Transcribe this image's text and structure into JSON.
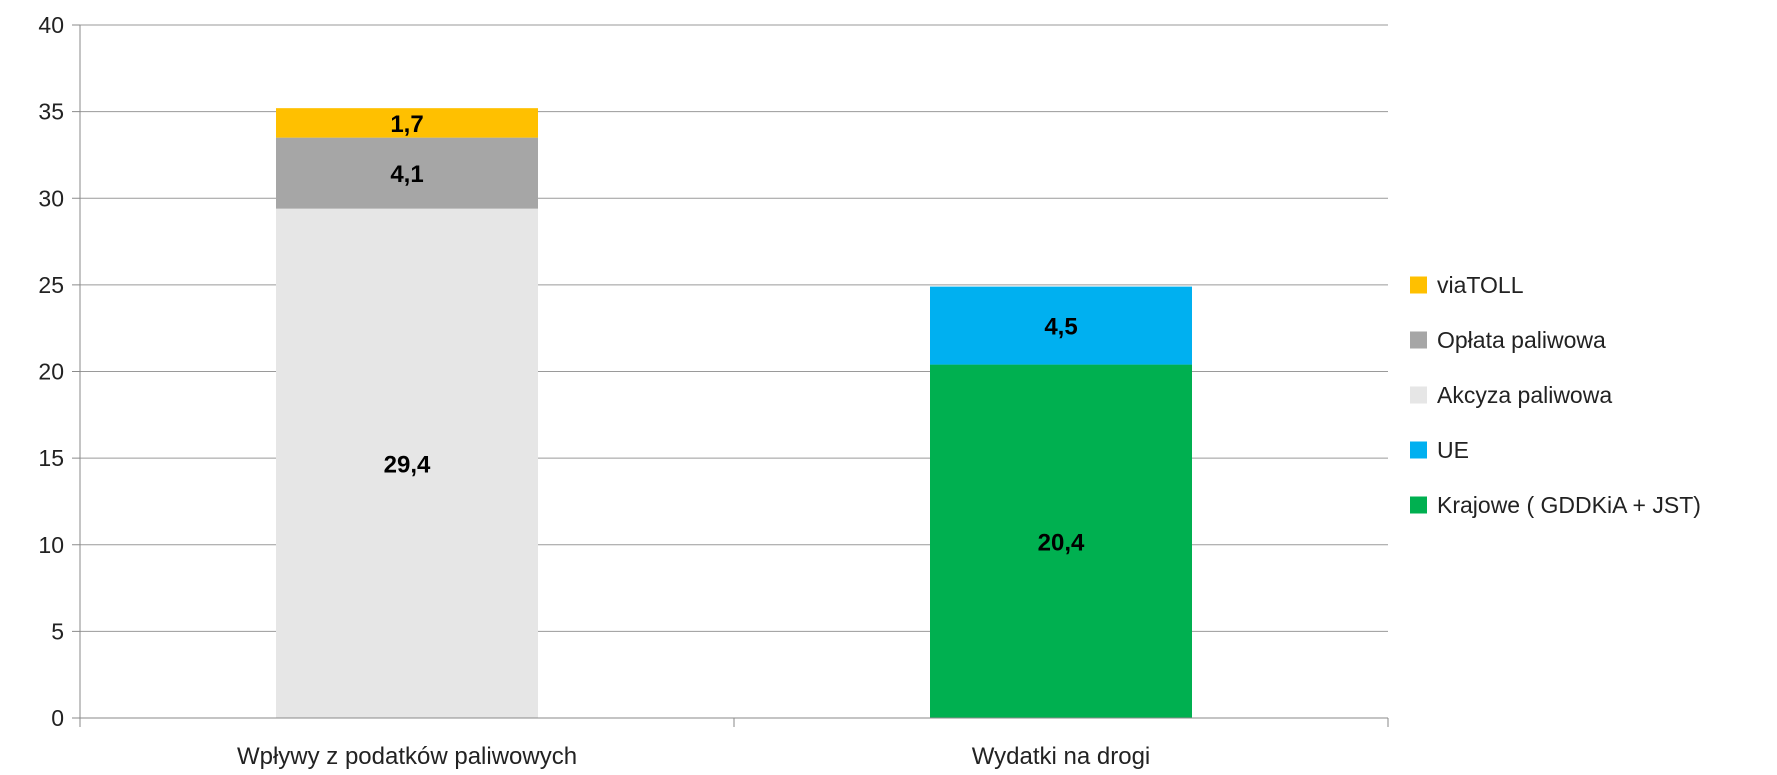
{
  "chart_data": {
    "type": "bar",
    "stacked": true,
    "categories": [
      "Wpływy z podatków paliwowych",
      "Wydatki na drogi"
    ],
    "ylim": [
      0,
      40
    ],
    "yticks": [
      0,
      5,
      10,
      15,
      20,
      25,
      30,
      35,
      40
    ],
    "grid": true,
    "legend_position": "right",
    "series": [
      {
        "name": "Akcyza paliwowa",
        "values": [
          29.4,
          null
        ],
        "labels": [
          "29,4",
          ""
        ],
        "color": "#e6e6e6"
      },
      {
        "name": "Opłata paliwowa",
        "values": [
          4.1,
          null
        ],
        "labels": [
          "4,1",
          ""
        ],
        "color": "#a6a6a6"
      },
      {
        "name": "viaTOLL",
        "values": [
          1.7,
          null
        ],
        "labels": [
          "1,7",
          ""
        ],
        "color": "#ffc000"
      },
      {
        "name": "Krajowe ( GDDKiA + JST)",
        "values": [
          null,
          20.4
        ],
        "labels": [
          "",
          "20,4"
        ],
        "color": "#00b050"
      },
      {
        "name": "UE",
        "values": [
          null,
          4.5
        ],
        "labels": [
          "",
          "4,5"
        ],
        "color": "#00b0f0"
      }
    ],
    "legend_order": [
      "viaTOLL",
      "Opłata paliwowa",
      "Akcyza paliwowa",
      "UE",
      "Krajowe ( GDDKiA + JST)"
    ]
  }
}
